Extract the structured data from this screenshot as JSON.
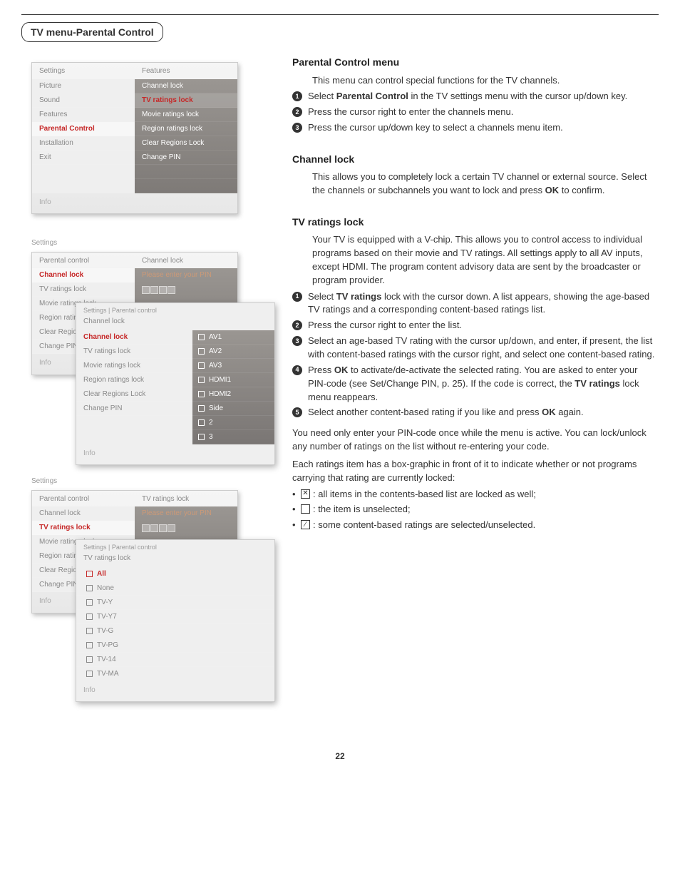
{
  "page_number": "22",
  "section_tag": "TV menu-Parental Control",
  "right": {
    "pc_menu": {
      "heading": "Parental Control menu",
      "intro": "This menu can control special functions for the TV channels.",
      "steps": [
        "Select Parental Control in the TV settings menu with the cursor up/down key.",
        "Press the cursor right to enter the channels menu.",
        "Press the cursor up/down key to select a channels menu item."
      ]
    },
    "channel_lock": {
      "heading": "Channel lock",
      "body": "This allows you to completely lock a certain TV channel or external source. Select the channels or subchannels you want to lock and press OK to confirm."
    },
    "tv_ratings": {
      "heading": "TV ratings lock",
      "intro": "Your TV is equipped with a V-chip. This allows you to control access to individual programs based on their movie and TV ratings. All settings apply to all AV inputs, except HDMI. The program content advisory data are sent by the broadcaster or program provider.",
      "steps": [
        "Select TV ratings lock with the cursor down. A list appears, showing the age-based TV ratings and a corresponding content-based ratings list.",
        "Press the cursor right to enter the list.",
        "Select an age-based TV rating with the cursor up/down, and enter, if present, the list with content-based ratings with the cursor right, and select one content-based rating.",
        "Press OK to activate/de-activate the selected rating. You are asked to enter your PIN-code (see Set/Change PIN, p. 25). If the code is correct, the TV ratings lock menu reappears.",
        "Select another content-based rating if you like and press OK again."
      ],
      "note1": "You need only enter your PIN-code once while the menu is active. You can lock/unlock any number of ratings on the list without re-entering your code.",
      "note2": "Each ratings item has a box-graphic in front of it to indicate whether or not programs carrying that rating are currently locked:",
      "legend": [
        {
          "icon": "x",
          "text": ": all items in the contents-based list are locked as well;"
        },
        {
          "icon": "blank",
          "text": ": the item is unselected;"
        },
        {
          "icon": "slash",
          "text": ": some content-based ratings are selected/unselected."
        }
      ]
    }
  },
  "menus": {
    "shot1": {
      "title": "",
      "left_header": "Settings",
      "right_header": "Features",
      "left_items": [
        "Picture",
        "Sound",
        "Features",
        "Parental Control",
        "Installation",
        "Exit"
      ],
      "left_selected": 3,
      "right_items": [
        "Channel lock",
        "TV ratings lock",
        "Movie ratings lock",
        "Region ratings lock",
        "Clear Regions Lock",
        "Change PIN"
      ],
      "right_selected": 1,
      "info": "Info"
    },
    "shot2": {
      "title": "Settings",
      "left_header": "Parental control",
      "right_header": "Channel lock",
      "left_items": [
        "Channel lock",
        "TV ratings lock",
        "Movie ratings lock",
        "Region ratings lock",
        "Clear Regions Lock",
        "Change PIN"
      ],
      "left_selected": 0,
      "banner": "Please enter your PIN",
      "info": "Info",
      "overlay": {
        "crumb": "Settings | Parental control",
        "subtitle": "Channel lock",
        "sub_items": [
          "Channel lock",
          "TV ratings lock",
          "Movie ratings lock",
          "Region ratings lock",
          "Clear Regions Lock",
          "Change PIN"
        ],
        "sub_selected": 0,
        "opts": [
          "AV1",
          "AV2",
          "AV3",
          "HDMI1",
          "HDMI2",
          "Side",
          "2",
          "3"
        ],
        "info": "Info"
      }
    },
    "shot3": {
      "title": "Settings",
      "left_header": "Parental control",
      "right_header": "TV ratings lock",
      "left_items": [
        "Channel lock",
        "TV ratings lock",
        "Movie ratings lock",
        "Region ratings lock",
        "Clear Regions Lock",
        "Change PIN"
      ],
      "left_selected": 1,
      "banner": "Please enter your PIN",
      "info": "Info",
      "overlay": {
        "crumb": "Settings | Parental control",
        "subtitle": "TV ratings lock",
        "opts": [
          "All",
          "None",
          "TV-Y",
          "TV-Y7",
          "TV-G",
          "TV-PG",
          "TV-14",
          "TV-MA"
        ],
        "opt_selected": 0,
        "info": "Info"
      }
    }
  }
}
